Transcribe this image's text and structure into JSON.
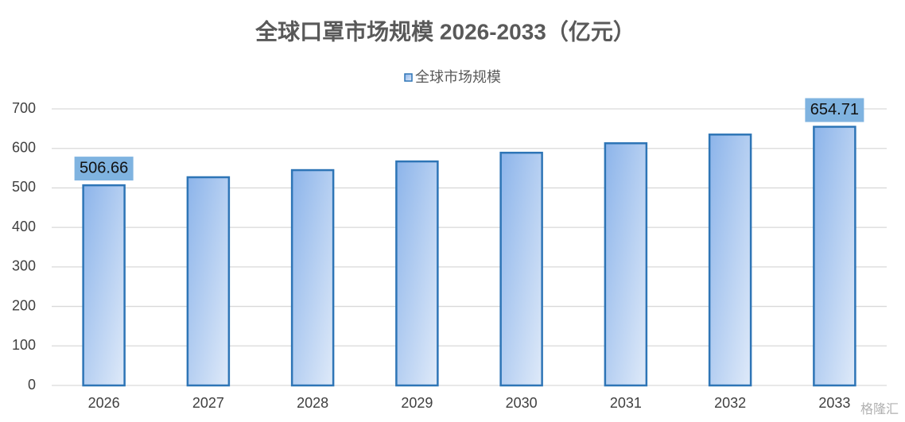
{
  "chart_data": {
    "type": "bar",
    "title": "全球口罩市场规模 2026-2033（亿元）",
    "categories": [
      "2026",
      "2027",
      "2028",
      "2029",
      "2030",
      "2031",
      "2032",
      "2033"
    ],
    "series": [
      {
        "name": "全球市场规模",
        "color": "#2e75b6",
        "values": [
          506.66,
          527,
          545,
          567,
          589,
          613,
          635,
          654.71
        ],
        "value_labels": [
          "506.66",
          null,
          null,
          null,
          null,
          null,
          null,
          "654.71"
        ]
      }
    ],
    "ylim": [
      0,
      700
    ],
    "yticks": [
      0,
      100,
      200,
      300,
      400,
      500,
      600,
      700
    ],
    "grid": true,
    "legend": "top",
    "watermark": "格隆汇"
  }
}
